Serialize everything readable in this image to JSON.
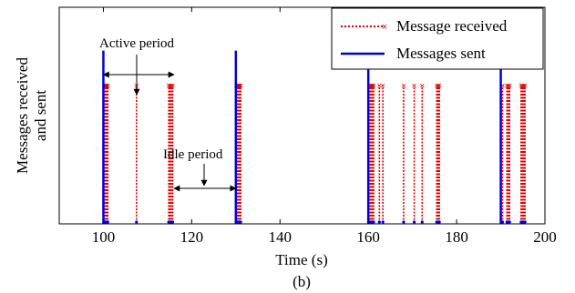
{
  "chart_data": {
    "type": "line",
    "xlabel": "Time (s)",
    "ylabel_line1": "Messages received",
    "ylabel_line2": "and sent",
    "caption": "(b)",
    "xlim": [
      90,
      200
    ],
    "ylim": [
      0,
      1.25
    ],
    "xticks": [
      100,
      120,
      140,
      160,
      180,
      200
    ],
    "xtick_labels": [
      "100",
      "120",
      "140",
      "160",
      "180",
      "200"
    ],
    "grid": false,
    "legend_position": "top-right",
    "series": [
      {
        "name": "Message received",
        "color": "#dd0000",
        "style": "dotted-x",
        "x": [
          100.2,
          100.4,
          100.6,
          100.8,
          101.0,
          107.5,
          114.8,
          115.1,
          115.4,
          115.7,
          130.1,
          130.3,
          130.5,
          130.7,
          130.9,
          131.1,
          160.2,
          160.5,
          160.8,
          161.0,
          161.2,
          162.5,
          163.3,
          168.0,
          170.4,
          172.2,
          175.5,
          175.8,
          176.1,
          190.4,
          191.4,
          191.7,
          192.0,
          194.6,
          194.9,
          195.2,
          195.5
        ],
        "values": [
          0.8,
          0.8,
          0.8,
          0.8,
          0.8,
          0.8,
          0.8,
          0.8,
          0.8,
          0.8,
          0.8,
          0.8,
          0.8,
          0.8,
          0.8,
          0.8,
          0.8,
          0.8,
          0.8,
          0.8,
          0.8,
          0.8,
          0.8,
          0.8,
          0.8,
          0.8,
          0.8,
          0.8,
          0.8,
          0.8,
          0.8,
          0.8,
          0.8,
          0.8,
          0.8,
          0.8,
          0.8
        ]
      },
      {
        "name": "Messages sent",
        "color": "#0000dd",
        "style": "solid",
        "x": [
          100,
          130,
          160,
          190
        ],
        "values": [
          1,
          1,
          1,
          1
        ]
      }
    ],
    "annotations": [
      {
        "label": "Active period",
        "x_start": 100,
        "x_end": 116
      },
      {
        "label": "Idle period",
        "x_start": 116,
        "x_end": 130
      }
    ]
  }
}
